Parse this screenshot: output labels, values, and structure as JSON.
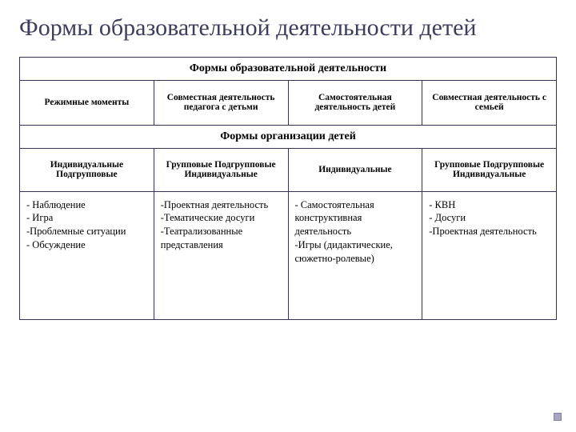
{
  "title": "Формы образовательной деятельности детей",
  "section1": "Формы образовательной деятельности",
  "cols": {
    "c1": "Режимные моменты",
    "c2": "Совместная деятельность педагога с детьми",
    "c3": "Самостоятельная деятельность детей",
    "c4": "Совместная деятельность с семьей"
  },
  "section2": "Формы организации детей",
  "sub": {
    "s1": "Индивидуальные Подгрупповые",
    "s2": "Групповые Подгрупповые Индивидуальные",
    "s3": "Индивидуальные",
    "s4": "Групповые Подгрупповые Индивидуальные"
  },
  "body": {
    "b1": "- Наблюдение\n- Игра\n-Проблемные ситуации\n- Обсуждение",
    "b2": "-Проектная деятельность\n-Тематические досуги\n-Театрализованные представления",
    "b3": "-    Самостоятельная конструктивная деятельность\n-Игры (дидактические, сюжетно-ролевые)",
    "b4": "- КВН\n- Досуги\n-Проектная деятельность"
  }
}
